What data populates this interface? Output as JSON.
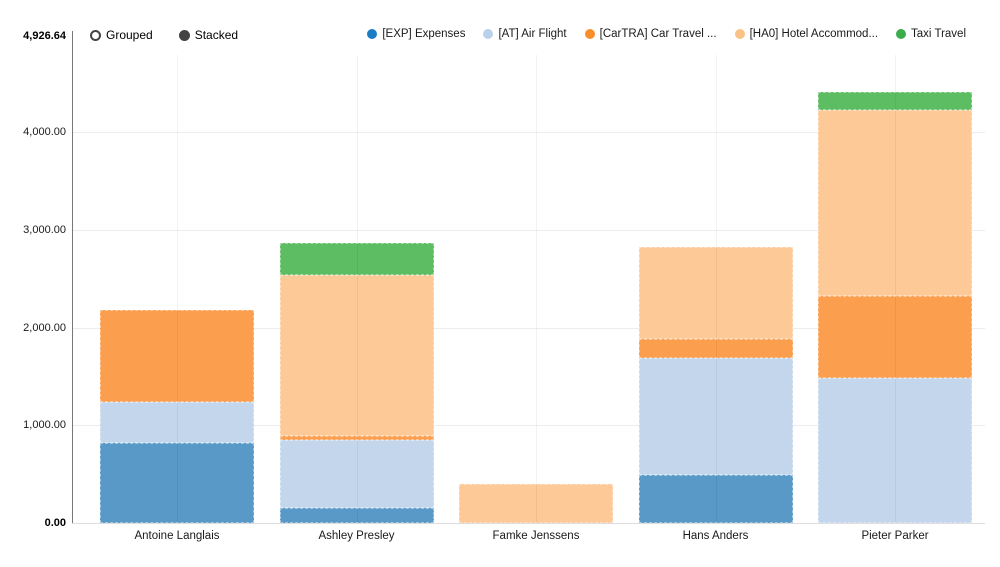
{
  "toolbar": {
    "modes": [
      {
        "label": "Grouped",
        "selected": false
      },
      {
        "label": "Stacked",
        "selected": true
      }
    ]
  },
  "legend": {
    "items": [
      {
        "label": "[EXP] Expenses",
        "color": "#1b7ec5"
      },
      {
        "label": "[AT] Air Flight",
        "color": "#b9d1ea"
      },
      {
        "label": "[CarTRA] Car Travel ...",
        "color": "#fb8e2c"
      },
      {
        "label": "[HA0] Hotel Accommod...",
        "color": "#fbc288"
      },
      {
        "label": "Taxi Travel",
        "color": "#3aad4a"
      }
    ]
  },
  "chart_data": {
    "type": "bar",
    "stacked": true,
    "title": "",
    "categories": [
      "Antoine Langlais",
      "Ashley Presley",
      "Famke Jenssens",
      "Hans Anders",
      "Pieter Parker"
    ],
    "series": [
      {
        "key": "expenses",
        "name": "[EXP] Expenses",
        "color": "#5899c8",
        "values": [
          820,
          150,
          0,
          490,
          0
        ]
      },
      {
        "key": "air-flight",
        "name": "[AT] Air Flight",
        "color": "#c3d6ec",
        "values": [
          420,
          700,
          0,
          1200,
          1490
        ]
      },
      {
        "key": "car-travel",
        "name": "[CarTRA] Car Travel ...",
        "color": "#fb9e4e",
        "values": [
          940,
          40,
          0,
          190,
          840
        ]
      },
      {
        "key": "hotel",
        "name": "[HA0] Hotel Accommod...",
        "color": "#fcc997",
        "values": [
          0,
          1650,
          400,
          950,
          1900
        ]
      },
      {
        "key": "taxi",
        "name": "Taxi Travel",
        "color": "#5dbd62",
        "values": [
          0,
          330,
          0,
          0,
          180
        ]
      }
    ],
    "totals": [
      2180,
      2870,
      400,
      2830,
      4410
    ],
    "ylim": [
      0,
      4926.64
    ],
    "axis_max_label": "4,926.64",
    "yticks": [
      "0.00",
      "1,000.00",
      "2,000.00",
      "3,000.00",
      "4,000.00"
    ],
    "ytick_values": [
      0,
      1000,
      2000,
      3000,
      4000
    ],
    "grid": true,
    "legend_position": "top-right",
    "xlabel": "",
    "ylabel": ""
  }
}
